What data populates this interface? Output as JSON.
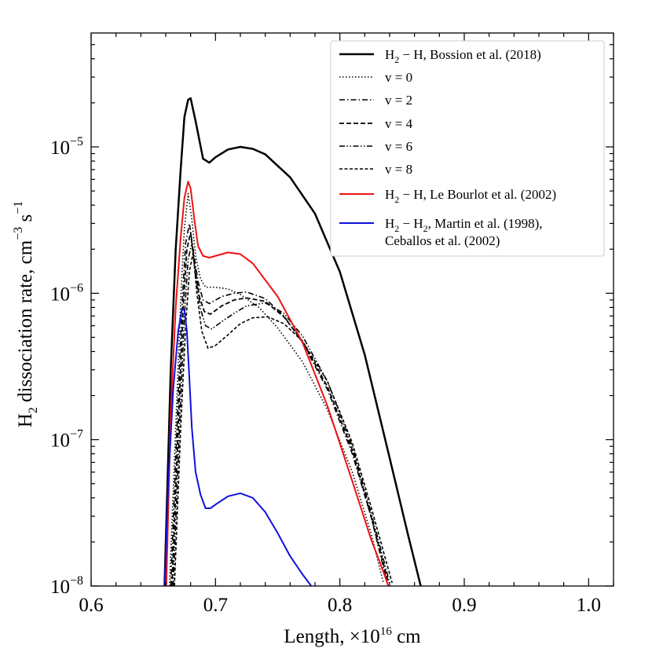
{
  "chart_data": {
    "type": "line",
    "title": "",
    "xlabel": {
      "main": "Length, ×10",
      "exp": "16",
      "unit": " cm"
    },
    "ylabel": {
      "pre": "H",
      "sub": "2",
      "mid": " dissociation rate, cm",
      "exp1": "−3",
      "mid2": " s",
      "exp2": "−1"
    },
    "xlim": [
      0.6,
      1.02
    ],
    "ylim": [
      1e-08,
      6e-05
    ],
    "yscale": "log",
    "grid": false,
    "legend_position": "top-right",
    "x_ticks": [
      0.6,
      0.7,
      0.8,
      0.9,
      1.0
    ],
    "x_tick_labels": [
      "0.6",
      "0.7",
      "0.8",
      "0.9",
      "1.0"
    ],
    "y_ticks": [
      {
        "value": 1e-08,
        "base": "10",
        "exp": "−8"
      },
      {
        "value": 1e-07,
        "base": "10",
        "exp": "−7"
      },
      {
        "value": 1e-06,
        "base": "10",
        "exp": "−6"
      },
      {
        "value": 1e-05,
        "base": "10",
        "exp": "−5"
      }
    ],
    "series": [
      {
        "name": "H2 − H, Bossion et al. (2018)",
        "legend": {
          "pre": "H",
          "sub": "2",
          "post": " − H, Bossion et al. (2018)"
        },
        "color": "#000000",
        "width": 2.5,
        "dash": "",
        "x": [
          0.658,
          0.664,
          0.668,
          0.672,
          0.675,
          0.678,
          0.68,
          0.684,
          0.69,
          0.695,
          0.7,
          0.71,
          0.72,
          0.73,
          0.74,
          0.76,
          0.78,
          0.8,
          0.82,
          0.84,
          0.855,
          0.865
        ],
        "y": [
          5e-09,
          3e-07,
          2e-06,
          7e-06,
          1.6e-05,
          2.1e-05,
          2.15e-05,
          1.5e-05,
          8.3e-06,
          7.8e-06,
          8.5e-06,
          9.6e-06,
          1e-05,
          9.7e-06,
          8.9e-06,
          6.2e-06,
          3.5e-06,
          1.4e-06,
          3.8e-07,
          7.5e-08,
          2.2e-08,
          1e-08
        ]
      },
      {
        "name": "v = 0",
        "legend": {
          "pre": "v = 0",
          "sub": "",
          "post": ""
        },
        "color": "#000000",
        "width": 1.6,
        "dash": "1.5,2.5",
        "x": [
          0.663,
          0.668,
          0.672,
          0.675,
          0.678,
          0.681,
          0.684,
          0.688,
          0.692,
          0.7,
          0.71,
          0.72,
          0.735,
          0.75,
          0.77,
          0.79,
          0.81,
          0.825,
          0.835
        ],
        "y": [
          1e-08,
          1.2e-07,
          9e-07,
          2.8e-06,
          4.8e-06,
          3.2e-06,
          1.8e-06,
          1.25e-06,
          1.1e-06,
          1.1e-06,
          1.07e-06,
          9.8e-07,
          8e-07,
          5.8e-07,
          3.4e-07,
          1.6e-07,
          6e-08,
          2.3e-08,
          1.05e-08
        ]
      },
      {
        "name": "v = 2",
        "legend": {
          "pre": "v = 2",
          "sub": "",
          "post": ""
        },
        "color": "#000000",
        "width": 1.6,
        "dash": "7,3,1.5,3",
        "x": [
          0.664,
          0.669,
          0.673,
          0.676,
          0.679,
          0.682,
          0.686,
          0.69,
          0.695,
          0.705,
          0.715,
          0.725,
          0.74,
          0.755,
          0.77,
          0.79,
          0.81,
          0.825,
          0.838
        ],
        "y": [
          1e-08,
          1.2e-07,
          8e-07,
          2.2e-06,
          3e-06,
          2e-06,
          1.2e-06,
          9e-07,
          8.5e-07,
          9.5e-07,
          1e-06,
          1.02e-06,
          9.2e-07,
          7e-07,
          4.6e-07,
          2.2e-07,
          8e-08,
          3e-08,
          1.05e-08
        ]
      },
      {
        "name": "v = 4",
        "legend": {
          "pre": "v = 4",
          "sub": "",
          "post": ""
        },
        "color": "#000000",
        "width": 1.8,
        "dash": "6,3",
        "x": [
          0.665,
          0.67,
          0.674,
          0.677,
          0.68,
          0.683,
          0.687,
          0.691,
          0.696,
          0.705,
          0.715,
          0.725,
          0.74,
          0.755,
          0.77,
          0.79,
          0.81,
          0.825,
          0.839
        ],
        "y": [
          1e-08,
          1.2e-07,
          8e-07,
          2e-06,
          2.6e-06,
          1.6e-06,
          9.5e-07,
          7.5e-07,
          7.2e-07,
          8.2e-07,
          9e-07,
          9.3e-07,
          8.8e-07,
          6.9e-07,
          4.7e-07,
          2.3e-07,
          8.5e-08,
          3e-08,
          1.05e-08
        ]
      },
      {
        "name": "v = 6",
        "legend": {
          "pre": "v = 6",
          "sub": "",
          "post": ""
        },
        "color": "#000000",
        "width": 1.6,
        "dash": "7,2.5,1.5,2.5,1.5,2.5",
        "x": [
          0.666,
          0.671,
          0.675,
          0.678,
          0.681,
          0.684,
          0.688,
          0.692,
          0.697,
          0.705,
          0.715,
          0.725,
          0.74,
          0.755,
          0.77,
          0.79,
          0.81,
          0.825,
          0.84
        ],
        "y": [
          1e-08,
          1.2e-07,
          7e-07,
          1.7e-06,
          2.2e-06,
          1.3e-06,
          7.8e-07,
          6e-07,
          5.7e-07,
          6.4e-07,
          7.3e-07,
          8.2e-07,
          8.6e-07,
          7.3e-07,
          5.1e-07,
          2.5e-07,
          9e-08,
          3.2e-08,
          1.05e-08
        ]
      },
      {
        "name": "v = 8",
        "legend": {
          "pre": "v = 8",
          "sub": "",
          "post": ""
        },
        "color": "#000000",
        "width": 1.6,
        "dash": "4,2.5",
        "x": [
          0.667,
          0.672,
          0.676,
          0.679,
          0.682,
          0.685,
          0.689,
          0.694,
          0.7,
          0.71,
          0.72,
          0.73,
          0.742,
          0.755,
          0.77,
          0.79,
          0.81,
          0.825,
          0.842
        ],
        "y": [
          1e-08,
          1.2e-07,
          6e-07,
          1.4e-06,
          1.9e-06,
          1e-06,
          5.5e-07,
          4.2e-07,
          4.4e-07,
          5.2e-07,
          6.2e-07,
          6.8e-07,
          6.9e-07,
          6.2e-07,
          4.7e-07,
          2.5e-07,
          9.5e-08,
          3.5e-08,
          1.05e-08
        ]
      },
      {
        "name": "H2 − H, Le Bourlot et al. (2002)",
        "legend": {
          "pre": "H",
          "sub": "2",
          "post": " − H, Le Bourlot et al. (2002)"
        },
        "color": "#ee1111",
        "width": 2.0,
        "dash": "",
        "x": [
          0.66,
          0.664,
          0.668,
          0.672,
          0.675,
          0.678,
          0.68,
          0.683,
          0.686,
          0.69,
          0.695,
          0.7,
          0.71,
          0.72,
          0.73,
          0.75,
          0.77,
          0.79,
          0.81,
          0.825,
          0.835,
          0.843
        ],
        "y": [
          7e-09,
          1.5e-07,
          8e-07,
          2.4e-06,
          4.5e-06,
          5.8e-06,
          5.2e-06,
          3.2e-06,
          2.1e-06,
          1.8e-06,
          1.75e-06,
          1.8e-06,
          1.9e-06,
          1.85e-06,
          1.6e-06,
          9.5e-07,
          4.6e-07,
          1.7e-07,
          5.2e-08,
          2.1e-08,
          1.25e-08,
          8e-09
        ]
      },
      {
        "name": "H2 − H2, Martin et al. (1998), Ceballos et al. (2002)",
        "legend": {
          "pre": "H",
          "sub": "2",
          "post": " − H",
          "sub2": "2",
          "post2": ", Martin et al. (1998),",
          "line2": "Ceballos et al. (2002)"
        },
        "color": "#1111dd",
        "width": 2.0,
        "dash": "",
        "x": [
          0.658,
          0.662,
          0.666,
          0.67,
          0.673,
          0.675,
          0.677,
          0.679,
          0.681,
          0.684,
          0.688,
          0.692,
          0.696,
          0.7,
          0.71,
          0.72,
          0.73,
          0.74,
          0.75,
          0.76,
          0.77,
          0.777
        ],
        "y": [
          5e-09,
          5e-08,
          2.2e-07,
          5.5e-07,
          7.8e-07,
          7.7e-07,
          5.5e-07,
          2.6e-07,
          1.2e-07,
          6e-08,
          4.2e-08,
          3.4e-08,
          3.4e-08,
          3.6e-08,
          4.1e-08,
          4.3e-08,
          4e-08,
          3.2e-08,
          2.3e-08,
          1.6e-08,
          1.2e-08,
          1e-08
        ]
      }
    ]
  }
}
